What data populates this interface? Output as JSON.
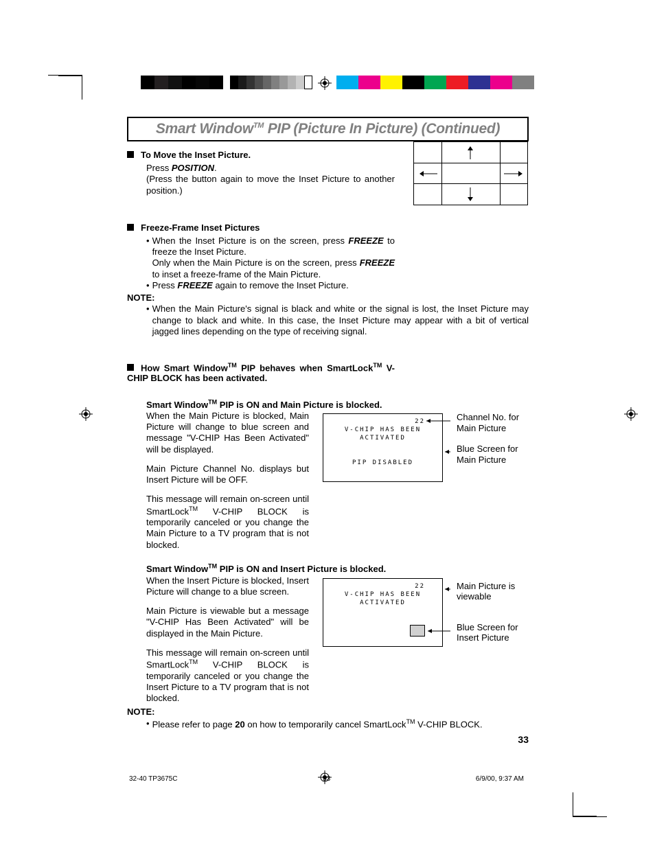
{
  "title_prefix": "Smart Window",
  "title_suffix": " PIP (Picture In Picture) (Continued)",
  "sections": {
    "move": {
      "head": "To Move the Inset Picture.",
      "press": "Press ",
      "position": "POSITION",
      "period": ".",
      "body": "(Press the button again to move the Inset Picture to another position.)"
    },
    "freeze": {
      "head": "Freeze-Frame Inset Pictures",
      "b1a": "When the Inset Picture is on the screen, press ",
      "b1b": "FREEZE",
      "b1c": " to freeze the Inset Picture.",
      "b1d": "Only when the Main Picture is on the screen, press ",
      "b1e": "FREEZE",
      "b1f": " to inset a freeze-frame of the Main Picture.",
      "b2a": "Press ",
      "b2b": "FREEZE",
      "b2c": " again to remove the Inset Picture."
    },
    "note1": {
      "head": "NOTE:",
      "body": "When the Main Picture's signal is black and white or the signal is lost, the Inset Picture may change to black and white. In this case, the Inset Picture may appear with a bit of vertical jagged lines depending on the type of receiving signal."
    },
    "vchip": {
      "head_a": "How Smart Window",
      "head_b": " PIP behaves when SmartLock",
      "head_c": " V-CHIP BLOCK has been activated."
    },
    "mainblocked": {
      "head_a": "Smart Window",
      "head_b": " PIP is ON and Main Picture is blocked.",
      "p1": "When the Main Picture is blocked, Main Picture will change to blue screen and message \"V-CHIP Has Been Activated\" will be displayed.",
      "p2": "Main Picture Channel No. displays but Insert Picture will be OFF.",
      "p3a": "This message will remain on-screen until SmartLock",
      "p3b": " V-CHIP BLOCK is temporarily canceled or you change the Main Picture to a TV program that is not blocked."
    },
    "insertblocked": {
      "head_a": "Smart Window",
      "head_b": " PIP is ON and Insert Picture is blocked.",
      "p1": "When the Insert Picture is blocked, Insert Picture will change to a blue screen.",
      "p2": "Main Picture is viewable but a message \"V-CHIP Has Been Activated\" will be displayed in the Main Picture.",
      "p3a": "This message will remain on-screen until SmartLock",
      "p3b": " V-CHIP BLOCK is temporarily canceled or you change the Insert Picture to a TV program that is not blocked."
    },
    "note2": {
      "head": "NOTE:",
      "a": "Please refer to page ",
      "b": "20",
      "c": " on how to temporarily cancel SmartLock",
      "d": " V-CHIP BLOCK."
    }
  },
  "screen1": {
    "ch": "22",
    "l1": "V-CHIP HAS BEEN",
    "l2": "ACTIVATED",
    "l3": "PIP DISABLED",
    "callout1": "Channel No. for Main Picture",
    "callout2": "Blue Screen for Main Picture"
  },
  "screen2": {
    "ch": "22",
    "l1": "V-CHIP HAS BEEN",
    "l2": "ACTIVATED",
    "callout1": "Main Picture is viewable",
    "callout2": "Blue Screen for Insert Picture"
  },
  "page_number": "33",
  "footer": {
    "doc": "32-40 TP3675C",
    "page": "33",
    "date": "6/9/00, 9:37 AM"
  },
  "colorbar1": [
    "#000000",
    "#231f20",
    "#111111",
    "#000000",
    "#060606",
    "#000000"
  ],
  "greys": [
    "#000000",
    "#1a1a1a",
    "#333333",
    "#4d4d4d",
    "#666666",
    "#808080",
    "#999999",
    "#b3b3b3",
    "#cccccc",
    "#ffffff"
  ],
  "colorbar2": [
    "#00aeef",
    "#ec008c",
    "#fff200",
    "#000000",
    "#00a651",
    "#ed1c24",
    "#2e3192",
    "#ec008c",
    "#808080"
  ],
  "tm_label": "TM"
}
